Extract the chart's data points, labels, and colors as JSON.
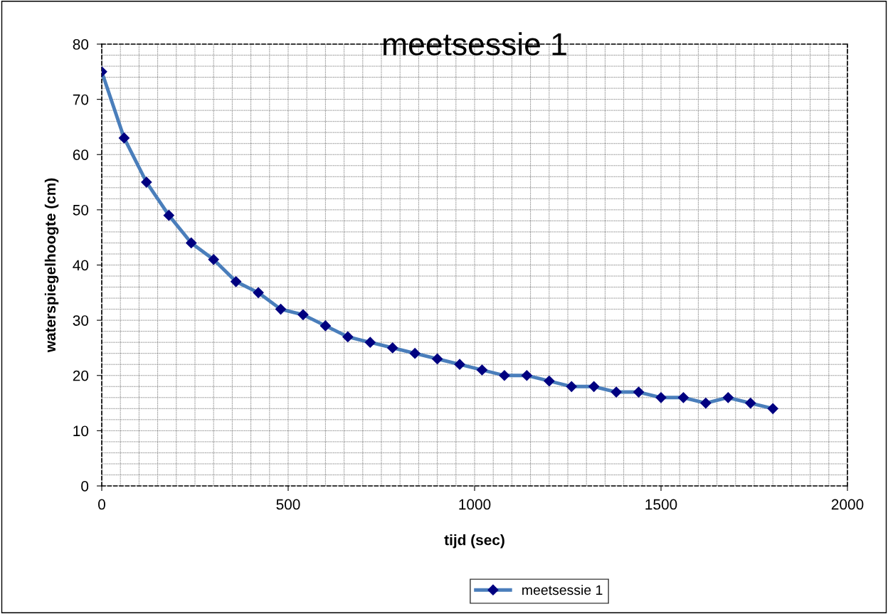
{
  "chart_data": {
    "type": "line",
    "title": "meetsessie 1",
    "xlabel": "tijd (sec)",
    "ylabel": "waterspiegelhoogte (cm)",
    "x": [
      0,
      60,
      120,
      180,
      240,
      300,
      360,
      420,
      480,
      540,
      600,
      660,
      720,
      780,
      840,
      900,
      960,
      1020,
      1080,
      1140,
      1200,
      1260,
      1320,
      1380,
      1440,
      1500,
      1560,
      1620,
      1680,
      1740,
      1800
    ],
    "series": [
      {
        "name": "meetsessie 1",
        "color": "#4a7ebb",
        "values": [
          75,
          63,
          55,
          49,
          44,
          41,
          37,
          35,
          32,
          31,
          29,
          27,
          26,
          25,
          24,
          23,
          22,
          21,
          20,
          20,
          19,
          18,
          18,
          17,
          17,
          16,
          16,
          15,
          16,
          15,
          14
        ]
      }
    ],
    "xlim": [
      0,
      2000
    ],
    "xticks": [
      0,
      500,
      1000,
      1500,
      2000
    ],
    "ylim": [
      0,
      80
    ],
    "yticks": [
      0,
      10,
      20,
      30,
      40,
      50,
      60,
      70,
      80
    ],
    "grid": true,
    "legend": "bottom",
    "marker": "diamond",
    "line_style": "solid"
  }
}
